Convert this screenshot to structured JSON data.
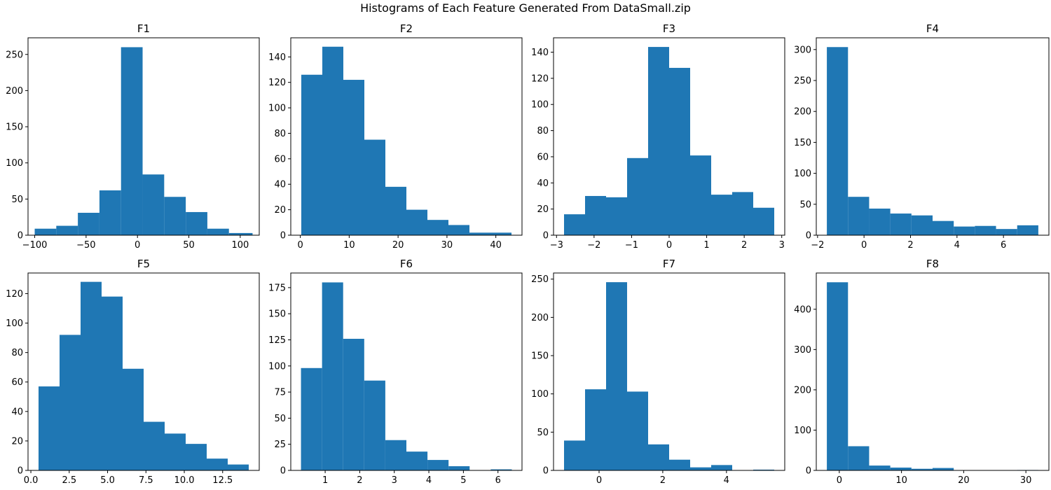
{
  "figure": {
    "suptitle": "Histograms of Each Feature Generated From DataSmall.zip",
    "bar_color": "#1f77b4"
  },
  "chart_data": [
    {
      "type": "bar",
      "title": "F1",
      "bins": [
        [
          -100,
          -79
        ],
        [
          -79,
          -58
        ],
        [
          -58,
          -37
        ],
        [
          -37,
          -16
        ],
        [
          -16,
          5
        ],
        [
          5,
          26
        ],
        [
          26,
          47
        ],
        [
          47,
          68
        ],
        [
          68,
          89
        ],
        [
          89,
          112
        ]
      ],
      "values": [
        9,
        13,
        31,
        62,
        260,
        84,
        53,
        32,
        9,
        3
      ],
      "xlim": [
        -106.5,
        118.5
      ],
      "ylim": [
        0,
        273
      ],
      "xticks": [
        -100,
        -50,
        0,
        50,
        100
      ],
      "xtick_labels": [
        "−100",
        "−50",
        "0",
        "50",
        "100"
      ],
      "yticks": [
        0,
        50,
        100,
        150,
        200,
        250
      ],
      "ytick_labels": [
        "0",
        "50",
        "100",
        "150",
        "200",
        "250"
      ]
    },
    {
      "type": "bar",
      "title": "F2",
      "bins": [
        [
          0.2,
          4.5
        ],
        [
          4.5,
          8.8
        ],
        [
          8.8,
          13.1
        ],
        [
          13.1,
          17.4
        ],
        [
          17.4,
          21.7
        ],
        [
          21.7,
          26.0
        ],
        [
          26.0,
          30.3
        ],
        [
          30.3,
          34.6
        ],
        [
          34.6,
          38.9
        ],
        [
          38.9,
          43.2
        ]
      ],
      "values": [
        126,
        148,
        122,
        75,
        38,
        20,
        12,
        8,
        2,
        2
      ],
      "xlim": [
        -1.95,
        45.35
      ],
      "ylim": [
        0,
        155
      ],
      "xticks": [
        0,
        10,
        20,
        30,
        40
      ],
      "xtick_labels": [
        "0",
        "10",
        "20",
        "30",
        "40"
      ],
      "yticks": [
        0,
        20,
        40,
        60,
        80,
        100,
        120,
        140
      ],
      "ytick_labels": [
        "0",
        "20",
        "40",
        "60",
        "80",
        "100",
        "120",
        "140"
      ]
    },
    {
      "type": "bar",
      "title": "F3",
      "bins": [
        [
          -2.8,
          -2.24
        ],
        [
          -2.24,
          -1.68
        ],
        [
          -1.68,
          -1.12
        ],
        [
          -1.12,
          -0.56
        ],
        [
          -0.56,
          0.0
        ],
        [
          0.0,
          0.56
        ],
        [
          0.56,
          1.12
        ],
        [
          1.12,
          1.68
        ],
        [
          1.68,
          2.24
        ],
        [
          2.24,
          2.8
        ]
      ],
      "values": [
        16,
        30,
        29,
        59,
        144,
        128,
        61,
        31,
        33,
        21
      ],
      "xlim": [
        -3.08,
        3.08
      ],
      "ylim": [
        0,
        151
      ],
      "xticks": [
        -3,
        -2,
        -1,
        0,
        1,
        2,
        3
      ],
      "xtick_labels": [
        "−3",
        "−2",
        "−1",
        "0",
        "1",
        "2",
        "3"
      ],
      "yticks": [
        0,
        20,
        40,
        60,
        80,
        100,
        120,
        140
      ],
      "ytick_labels": [
        "0",
        "20",
        "40",
        "60",
        "80",
        "100",
        "120",
        "140"
      ]
    },
    {
      "type": "bar",
      "title": "F4",
      "bins": [
        [
          -1.6,
          -0.69
        ],
        [
          -0.69,
          0.22
        ],
        [
          0.22,
          1.13
        ],
        [
          1.13,
          2.04
        ],
        [
          2.04,
          2.95
        ],
        [
          2.95,
          3.86
        ],
        [
          3.86,
          4.77
        ],
        [
          4.77,
          5.68
        ],
        [
          5.68,
          6.59
        ],
        [
          6.59,
          7.5
        ]
      ],
      "values": [
        304,
        62,
        43,
        35,
        32,
        23,
        14,
        15,
        10,
        16
      ],
      "xlim": [
        -2.055,
        7.955
      ],
      "ylim": [
        0,
        319
      ],
      "xticks": [
        -2,
        0,
        2,
        4,
        6
      ],
      "xtick_labels": [
        "−2",
        "0",
        "2",
        "4",
        "6"
      ],
      "yticks": [
        0,
        50,
        100,
        150,
        200,
        250,
        300
      ],
      "ytick_labels": [
        "0",
        "50",
        "100",
        "150",
        "200",
        "250",
        "300"
      ]
    },
    {
      "type": "bar",
      "title": "F5",
      "bins": [
        [
          0.5,
          1.87
        ],
        [
          1.87,
          3.24
        ],
        [
          3.24,
          4.61
        ],
        [
          4.61,
          5.98
        ],
        [
          5.98,
          7.35
        ],
        [
          7.35,
          8.72
        ],
        [
          8.72,
          10.09
        ],
        [
          10.09,
          11.46
        ],
        [
          11.46,
          12.83
        ],
        [
          12.83,
          14.2
        ]
      ],
      "values": [
        57,
        92,
        128,
        118,
        69,
        33,
        25,
        18,
        8,
        4
      ],
      "xlim": [
        -0.185,
        14.885
      ],
      "ylim": [
        0,
        134
      ],
      "xticks": [
        0,
        2.5,
        5,
        7.5,
        10,
        12.5
      ],
      "xtick_labels": [
        "0.0",
        "2.5",
        "5.0",
        "7.5",
        "10.0",
        "12.5"
      ],
      "yticks": [
        0,
        20,
        40,
        60,
        80,
        100,
        120
      ],
      "ytick_labels": [
        "0",
        "20",
        "40",
        "60",
        "80",
        "100",
        "120"
      ]
    },
    {
      "type": "bar",
      "title": "F6",
      "bins": [
        [
          0.3,
          0.91
        ],
        [
          0.91,
          1.52
        ],
        [
          1.52,
          2.13
        ],
        [
          2.13,
          2.74
        ],
        [
          2.74,
          3.35
        ],
        [
          3.35,
          3.96
        ],
        [
          3.96,
          4.57
        ],
        [
          4.57,
          5.18
        ],
        [
          5.18,
          5.79
        ],
        [
          5.79,
          6.4
        ]
      ],
      "values": [
        98,
        180,
        126,
        86,
        29,
        18,
        10,
        4,
        0,
        1
      ],
      "xlim": [
        0.005,
        6.695
      ],
      "ylim": [
        0,
        189
      ],
      "xticks": [
        1,
        2,
        3,
        4,
        5,
        6
      ],
      "xtick_labels": [
        "1",
        "2",
        "3",
        "4",
        "5",
        "6"
      ],
      "yticks": [
        0,
        25,
        50,
        75,
        100,
        125,
        150,
        175
      ],
      "ytick_labels": [
        "0",
        "25",
        "50",
        "75",
        "100",
        "125",
        "150",
        "175"
      ]
    },
    {
      "type": "bar",
      "title": "F7",
      "bins": [
        [
          -1.1,
          -0.44
        ],
        [
          -0.44,
          0.22
        ],
        [
          0.22,
          0.88
        ],
        [
          0.88,
          1.54
        ],
        [
          1.54,
          2.2
        ],
        [
          2.2,
          2.86
        ],
        [
          2.86,
          3.52
        ],
        [
          3.52,
          4.18
        ],
        [
          4.18,
          4.84
        ],
        [
          4.84,
          5.5
        ]
      ],
      "values": [
        39,
        106,
        246,
        103,
        34,
        14,
        4,
        7,
        0,
        1
      ],
      "xlim": [
        -1.43,
        5.83
      ],
      "ylim": [
        0,
        258
      ],
      "xticks": [
        0,
        2,
        4
      ],
      "xtick_labels": [
        "0",
        "2",
        "4"
      ],
      "yticks": [
        0,
        50,
        100,
        150,
        200,
        250
      ],
      "ytick_labels": [
        "0",
        "50",
        "100",
        "150",
        "200",
        "250"
      ]
    },
    {
      "type": "bar",
      "title": "F8",
      "bins": [
        [
          -2.0,
          1.4
        ],
        [
          1.4,
          4.8
        ],
        [
          4.8,
          8.2
        ],
        [
          8.2,
          11.6
        ],
        [
          11.6,
          15.0
        ],
        [
          15.0,
          18.4
        ],
        [
          18.4,
          21.8
        ],
        [
          21.8,
          25.2
        ],
        [
          25.2,
          28.6
        ],
        [
          28.6,
          32.0
        ]
      ],
      "values": [
        467,
        60,
        12,
        7,
        4,
        6,
        0,
        0,
        0,
        1
      ],
      "xlim": [
        -3.7,
        33.7
      ],
      "ylim": [
        0,
        490
      ],
      "xticks": [
        0,
        10,
        20,
        30
      ],
      "xtick_labels": [
        "0",
        "10",
        "20",
        "30"
      ],
      "yticks": [
        0,
        100,
        200,
        300,
        400
      ],
      "ytick_labels": [
        "0",
        "100",
        "200",
        "300",
        "400"
      ]
    }
  ]
}
